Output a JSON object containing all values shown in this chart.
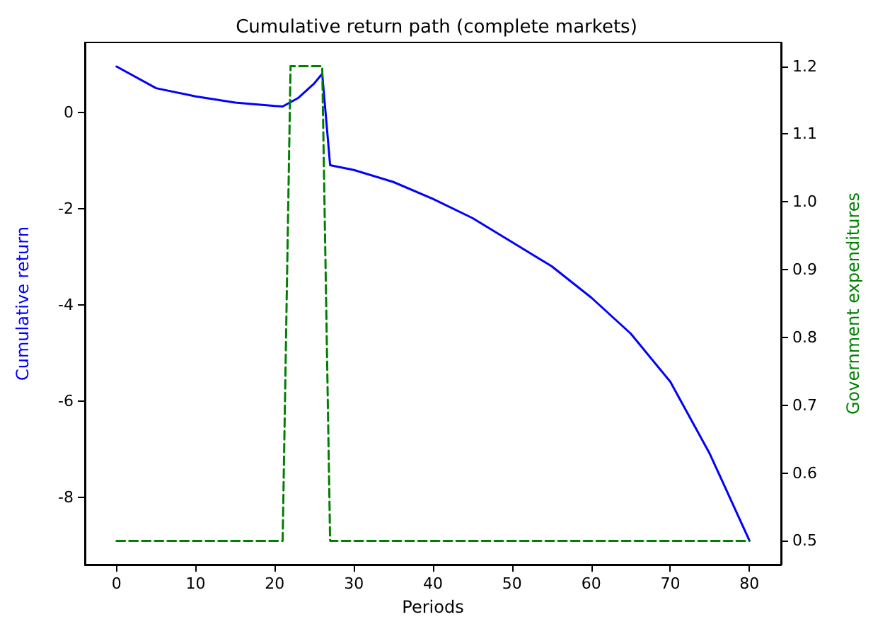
{
  "chart_data": {
    "type": "line",
    "title": "Cumulative return path (complete markets)",
    "xlabel": "Periods",
    "ylabel": "Cumulative return",
    "y2label": "Government expenditures",
    "xlim": [
      -4,
      84
    ],
    "xticks": [
      0,
      10,
      20,
      30,
      40,
      50,
      60,
      70,
      80
    ],
    "ylim": [
      -9.4,
      1.45
    ],
    "yticks": [
      -8,
      -6,
      -4,
      -2,
      0
    ],
    "y2lim": [
      0.465,
      1.235
    ],
    "y2ticks": [
      0.5,
      0.6,
      0.7,
      0.8,
      0.9,
      {
        "value": 1,
        "label": "1.0"
      },
      1.1,
      1.2
    ],
    "marker": "none",
    "series": [
      {
        "color": "#0000ff",
        "line_style": "solid",
        "x": [
          0,
          5,
          10,
          15,
          20,
          21,
          23,
          25,
          26,
          27,
          30,
          35,
          40,
          45,
          50,
          55,
          60,
          65,
          70,
          75,
          80
        ],
        "values": [
          0.95,
          0.5,
          0.33,
          0.2,
          0.13,
          0.12,
          0.3,
          0.6,
          0.8,
          -1.1,
          -1.2,
          -1.45,
          -1.8,
          -2.2,
          -2.7,
          -3.2,
          -3.85,
          -4.6,
          -5.6,
          -7.1,
          -8.9
        ]
      },
      {
        "color": "#008000",
        "line_style": "dashed",
        "axis": "y2",
        "x": [
          0,
          21,
          22,
          26,
          27,
          80
        ],
        "values": [
          0.5,
          0.5,
          1.2,
          1.2,
          0.5,
          0.5
        ]
      }
    ]
  }
}
